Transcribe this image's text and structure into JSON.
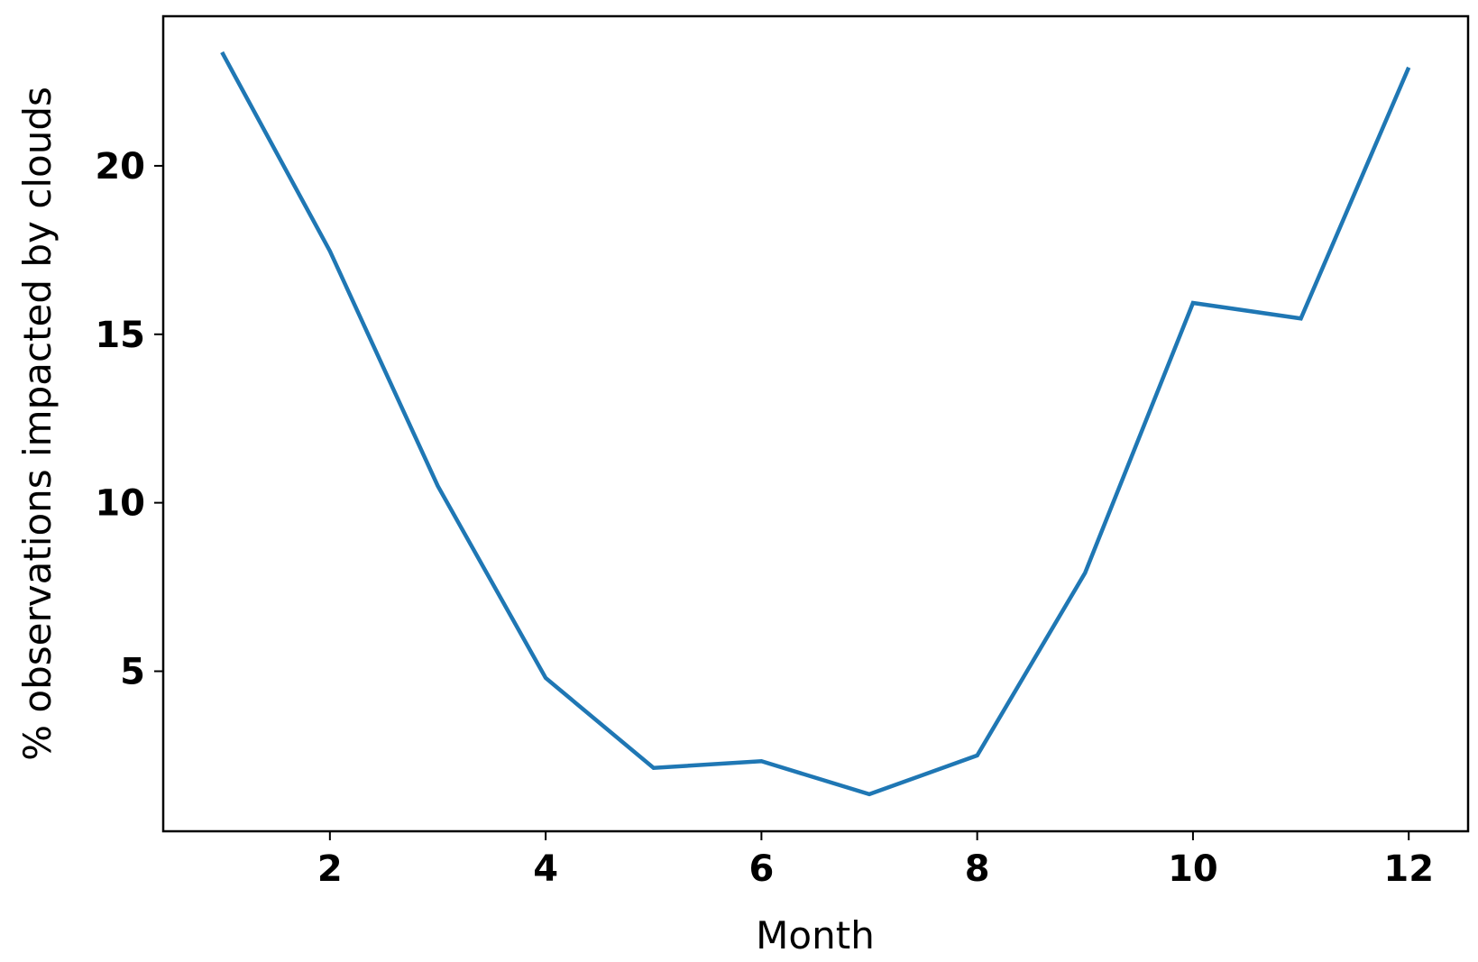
{
  "chart_data": {
    "type": "line",
    "x_label": "Month",
    "y_label": "% observations impacted by clouds",
    "x": [
      1,
      2,
      3,
      4,
      5,
      6,
      7,
      8,
      9,
      10,
      11,
      12
    ],
    "series": [
      {
        "color": "#1f77b4",
        "values": [
          23.37,
          17.47,
          10.5,
          4.8,
          2.13,
          2.33,
          1.35,
          2.5,
          7.92,
          15.93,
          15.47,
          22.92
        ]
      }
    ],
    "xlim": [
      0.455,
      12.55
    ],
    "ylim": [
      0.25,
      24.44
    ],
    "xticks": [
      2,
      4,
      6,
      8,
      10,
      12
    ],
    "yticks": [
      5,
      10,
      15,
      20
    ]
  }
}
